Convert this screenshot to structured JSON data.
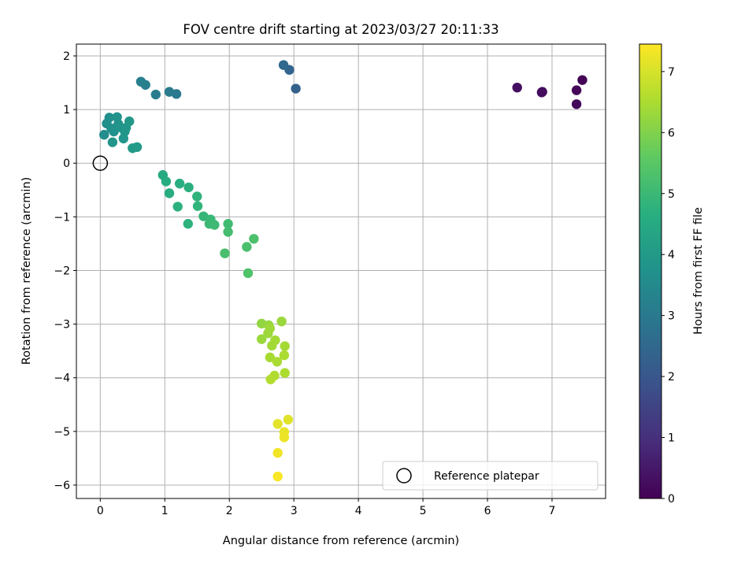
{
  "chart_data": {
    "type": "scatter",
    "title": "FOV centre drift starting at 2023/03/27 20:11:33",
    "xlabel": "Angular distance from reference (arcmin)",
    "ylabel": "Rotation from reference (arcmin)",
    "xlim": [
      -0.37,
      7.83
    ],
    "ylim": [
      -6.25,
      2.22
    ],
    "xticks": [
      0,
      1,
      2,
      3,
      4,
      5,
      6,
      7
    ],
    "yticks": [
      -6,
      -5,
      -4,
      -3,
      -2,
      -1,
      0,
      1,
      2
    ],
    "grid": true,
    "colorbar": {
      "label": "Hours from first FF file",
      "colormap": "viridis",
      "range": [
        0,
        7.45
      ],
      "ticks": [
        0,
        1,
        2,
        3,
        4,
        5,
        6,
        7
      ]
    },
    "legend": {
      "position": "lower-right",
      "entries": [
        "Reference platepar"
      ]
    },
    "reference": {
      "x": 0,
      "y": 0
    },
    "points": [
      {
        "x": 7.47,
        "y": 1.55,
        "c": 0.05
      },
      {
        "x": 7.38,
        "y": 1.36,
        "c": 0.1
      },
      {
        "x": 7.38,
        "y": 1.1,
        "c": 0.15
      },
      {
        "x": 6.85,
        "y": 1.33,
        "c": 0.2
      },
      {
        "x": 6.84,
        "y": 1.32,
        "c": 0.25
      },
      {
        "x": 6.46,
        "y": 1.41,
        "c": 0.3
      },
      {
        "x": 3.03,
        "y": 1.39,
        "c": 2.3
      },
      {
        "x": 2.93,
        "y": 1.74,
        "c": 2.4
      },
      {
        "x": 2.84,
        "y": 1.83,
        "c": 2.5
      },
      {
        "x": 1.18,
        "y": 1.29,
        "c": 3.0
      },
      {
        "x": 1.07,
        "y": 1.33,
        "c": 3.05
      },
      {
        "x": 0.86,
        "y": 1.28,
        "c": 3.1
      },
      {
        "x": 0.7,
        "y": 1.46,
        "c": 3.15
      },
      {
        "x": 0.63,
        "y": 1.52,
        "c": 3.2
      },
      {
        "x": 0.06,
        "y": 0.53,
        "c": 3.6
      },
      {
        "x": 0.1,
        "y": 0.74,
        "c": 3.65
      },
      {
        "x": 0.14,
        "y": 0.85,
        "c": 3.7
      },
      {
        "x": 0.17,
        "y": 0.65,
        "c": 3.72
      },
      {
        "x": 0.21,
        "y": 0.59,
        "c": 3.75
      },
      {
        "x": 0.26,
        "y": 0.86,
        "c": 3.78
      },
      {
        "x": 0.28,
        "y": 0.73,
        "c": 3.8
      },
      {
        "x": 0.31,
        "y": 0.67,
        "c": 3.82
      },
      {
        "x": 0.19,
        "y": 0.39,
        "c": 3.85
      },
      {
        "x": 0.36,
        "y": 0.46,
        "c": 3.88
      },
      {
        "x": 0.38,
        "y": 0.59,
        "c": 3.9
      },
      {
        "x": 0.4,
        "y": 0.66,
        "c": 3.92
      },
      {
        "x": 0.45,
        "y": 0.78,
        "c": 3.95
      },
      {
        "x": 0.5,
        "y": 0.28,
        "c": 4.0
      },
      {
        "x": 0.57,
        "y": 0.3,
        "c": 4.05
      },
      {
        "x": 0.97,
        "y": -0.22,
        "c": 4.5
      },
      {
        "x": 1.02,
        "y": -0.34,
        "c": 4.55
      },
      {
        "x": 1.07,
        "y": -0.56,
        "c": 4.6
      },
      {
        "x": 1.23,
        "y": -0.38,
        "c": 4.65
      },
      {
        "x": 1.37,
        "y": -0.45,
        "c": 4.7
      },
      {
        "x": 1.2,
        "y": -0.81,
        "c": 4.72
      },
      {
        "x": 1.36,
        "y": -1.13,
        "c": 4.75
      },
      {
        "x": 1.5,
        "y": -0.62,
        "c": 4.8
      },
      {
        "x": 1.51,
        "y": -0.8,
        "c": 4.85
      },
      {
        "x": 1.6,
        "y": -0.99,
        "c": 4.9
      },
      {
        "x": 1.71,
        "y": -1.05,
        "c": 4.95
      },
      {
        "x": 1.69,
        "y": -1.13,
        "c": 5.0
      },
      {
        "x": 1.77,
        "y": -1.15,
        "c": 5.05
      },
      {
        "x": 1.98,
        "y": -1.13,
        "c": 5.1
      },
      {
        "x": 1.98,
        "y": -1.28,
        "c": 5.15
      },
      {
        "x": 1.93,
        "y": -1.68,
        "c": 5.2
      },
      {
        "x": 2.27,
        "y": -1.56,
        "c": 5.25
      },
      {
        "x": 2.38,
        "y": -1.41,
        "c": 5.3
      },
      {
        "x": 2.29,
        "y": -2.05,
        "c": 5.35
      },
      {
        "x": 2.5,
        "y": -2.99,
        "c": 6.2
      },
      {
        "x": 2.61,
        "y": -3.02,
        "c": 6.25
      },
      {
        "x": 2.81,
        "y": -2.95,
        "c": 6.3
      },
      {
        "x": 2.5,
        "y": -3.28,
        "c": 6.3
      },
      {
        "x": 2.6,
        "y": -3.17,
        "c": 6.32
      },
      {
        "x": 2.63,
        "y": -3.08,
        "c": 6.35
      },
      {
        "x": 2.66,
        "y": -3.4,
        "c": 6.38
      },
      {
        "x": 2.71,
        "y": -3.3,
        "c": 6.4
      },
      {
        "x": 2.86,
        "y": -3.41,
        "c": 6.42
      },
      {
        "x": 2.63,
        "y": -3.62,
        "c": 6.45
      },
      {
        "x": 2.74,
        "y": -3.7,
        "c": 6.48
      },
      {
        "x": 2.85,
        "y": -3.58,
        "c": 6.5
      },
      {
        "x": 2.86,
        "y": -3.91,
        "c": 6.52
      },
      {
        "x": 2.7,
        "y": -3.96,
        "c": 6.55
      },
      {
        "x": 2.64,
        "y": -4.03,
        "c": 6.58
      },
      {
        "x": 2.91,
        "y": -4.78,
        "c": 7.1
      },
      {
        "x": 2.75,
        "y": -4.86,
        "c": 7.15
      },
      {
        "x": 2.85,
        "y": -5.01,
        "c": 7.2
      },
      {
        "x": 2.85,
        "y": -5.11,
        "c": 7.25
      },
      {
        "x": 2.75,
        "y": -5.4,
        "c": 7.3
      },
      {
        "x": 2.75,
        "y": -5.84,
        "c": 7.4
      }
    ]
  }
}
